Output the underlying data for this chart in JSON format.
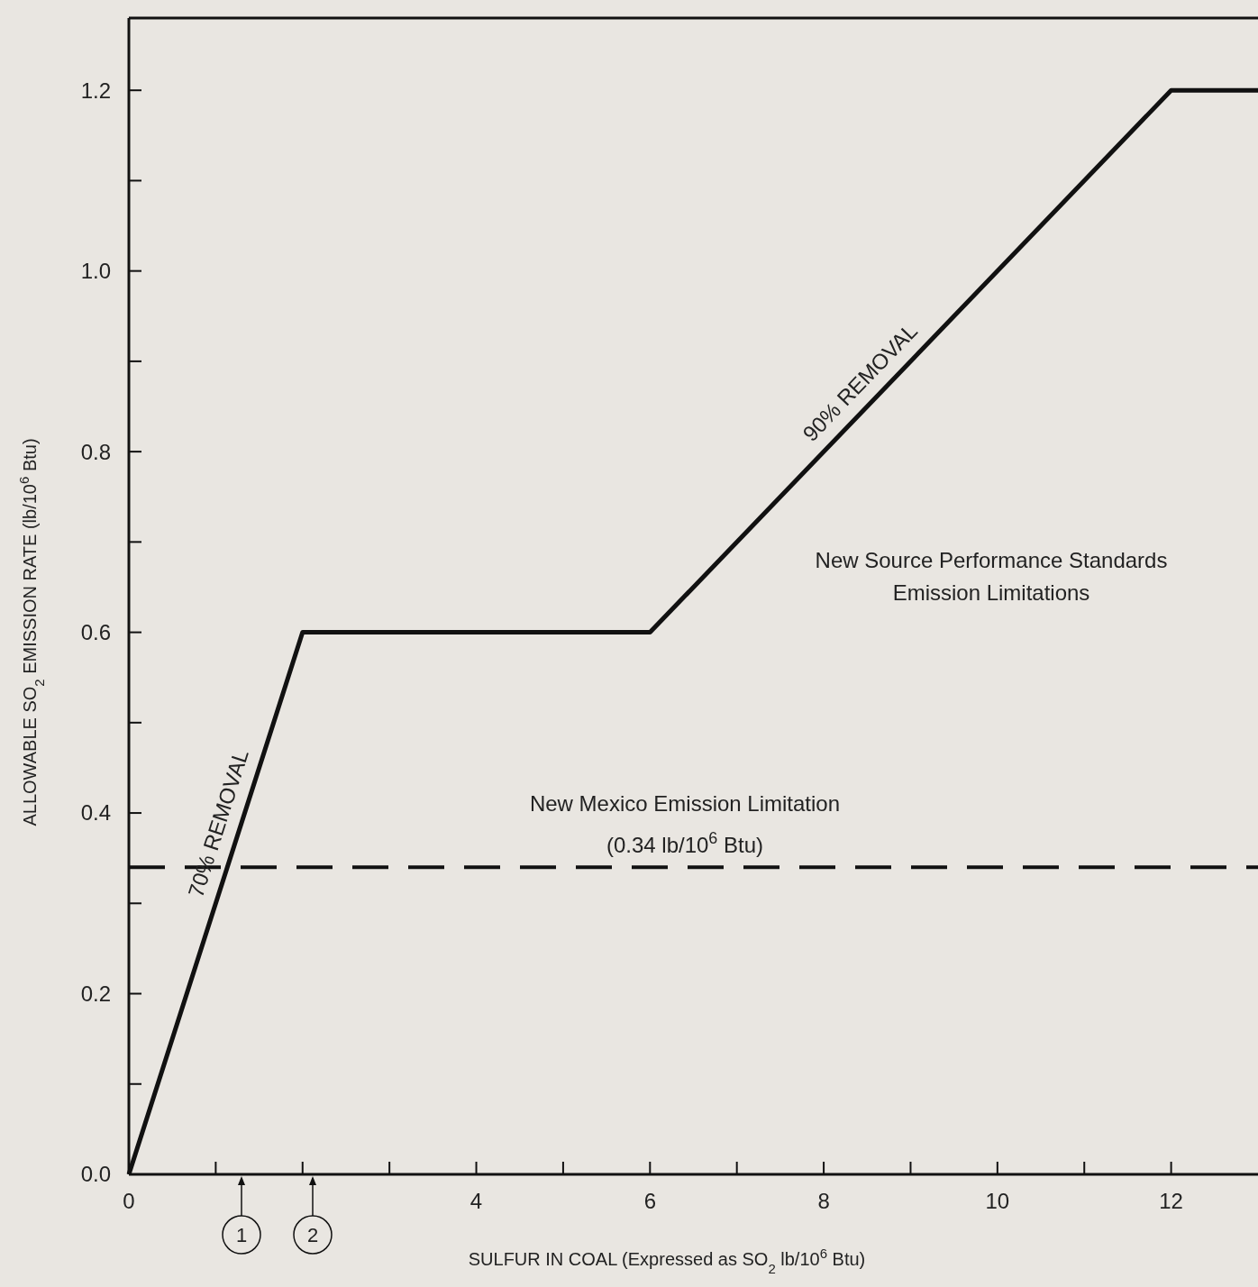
{
  "chart_data": {
    "type": "line",
    "xlabel": "SULFUR IN COAL (Expressed as SO$_{2}$ lb/10$^{6}$ Btu)",
    "ylabel": "ALLOWABLE SO$_{2}$ EMISSION RATE (lb/10$^{6}$ Btu)",
    "x": [
      0,
      2,
      6,
      12,
      13
    ],
    "series": [
      {
        "color": "#111111",
        "values": [
          0,
          0.6,
          0.6,
          1.2,
          1.2
        ]
      }
    ],
    "xlim": [
      0,
      13
    ],
    "ylim": [
      0,
      1.28
    ],
    "xticks": [
      0,
      {
        "value": 1,
        "label": null
      },
      {
        "value": 2,
        "label": null
      },
      {
        "value": 3,
        "label": null
      },
      4,
      {
        "value": 5,
        "label": null
      },
      6,
      {
        "value": 7,
        "label": null
      },
      8,
      {
        "value": 9,
        "label": null
      },
      10,
      {
        "value": 11,
        "label": null
      },
      12
    ],
    "yticks": [
      {
        "value": 0,
        "label": "0.0"
      },
      {
        "value": 0.1,
        "label": null
      },
      0.2,
      {
        "value": 0.3,
        "label": null
      },
      0.4,
      {
        "value": 0.5,
        "label": null
      },
      0.6,
      {
        "value": 0.7,
        "label": null
      },
      0.8,
      {
        "value": 0.9,
        "label": null
      },
      {
        "value": 1,
        "label": "1.0"
      },
      {
        "value": 1.1,
        "label": null
      },
      1.2
    ],
    "grid": false,
    "marker": "none",
    "line_style": "solid",
    "ref_lines": [
      {
        "axis": "y",
        "value": 0.34,
        "label": "New Mexico Emission Limitation\n(0.34 lb/10$^{6}$ Btu)",
        "color": "#111111",
        "line_style": "dashed"
      }
    ],
    "annotations": [
      {
        "text": "70% REMOVAL",
        "x": 1.27,
        "y": 0.381
      },
      {
        "text": "90% REMOVAL",
        "x": 8.6,
        "y": 0.86
      },
      "New Source Performance Standards\nEmission Limitations",
      "1",
      "2"
    ]
  }
}
